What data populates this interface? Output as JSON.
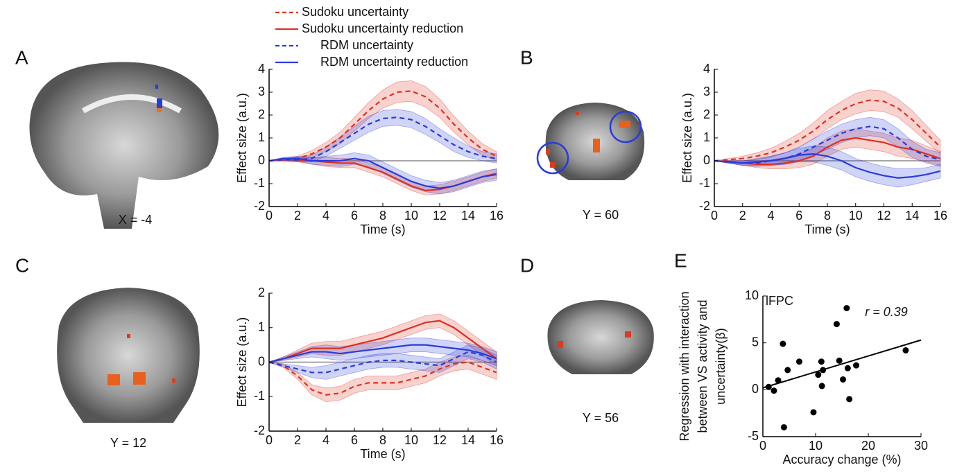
{
  "panel_labels": [
    "A",
    "B",
    "C",
    "D",
    "E"
  ],
  "brain_labels": [
    "X = -4",
    "Y = 60",
    "Y = 12",
    "Y = 56"
  ],
  "chart_data": [
    {
      "type": "line",
      "xlabel": "Time (s)",
      "ylabel": "Effect size (a.u.)",
      "x": [
        0,
        1,
        2,
        3,
        4,
        5,
        6,
        7,
        8,
        9,
        10,
        11,
        12,
        13,
        14,
        15,
        16
      ],
      "xlim": [
        0,
        16
      ],
      "xticks": [
        0,
        2,
        4,
        6,
        8,
        10,
        12,
        14,
        16
      ],
      "ylim": [
        -2,
        4
      ],
      "yticks": [
        -2,
        -1,
        0,
        1,
        2,
        3,
        4
      ],
      "reference_line": 0,
      "series": [
        {
          "name": "Sudoku uncertainty",
          "color": "#e0301e",
          "dash": true,
          "values": [
            0,
            0.05,
            0.1,
            0.3,
            0.6,
            1.0,
            1.6,
            2.2,
            2.7,
            3.0,
            3.05,
            2.8,
            2.3,
            1.6,
            1.0,
            0.5,
            0.2
          ],
          "error": [
            0,
            0.05,
            0.1,
            0.15,
            0.2,
            0.25,
            0.3,
            0.35,
            0.4,
            0.45,
            0.45,
            0.45,
            0.4,
            0.35,
            0.3,
            0.25,
            0.2
          ]
        },
        {
          "name": "Sudoku uncertainty reduction",
          "color": "#e0301e",
          "dash": false,
          "values": [
            0,
            0.05,
            0.05,
            0,
            -0.05,
            -0.1,
            -0.1,
            -0.3,
            -0.5,
            -0.8,
            -1.1,
            -1.3,
            -1.25,
            -1.1,
            -0.9,
            -0.7,
            -0.55
          ],
          "error": [
            0,
            0.05,
            0.1,
            0.15,
            0.2,
            0.2,
            0.2,
            0.2,
            0.2,
            0.2,
            0.2,
            0.2,
            0.2,
            0.2,
            0.2,
            0.2,
            0.2
          ]
        },
        {
          "name": "RDM uncertainty",
          "color": "#2a3bdc",
          "dash": true,
          "values": [
            0,
            0.05,
            0.05,
            0.1,
            0.4,
            0.8,
            1.2,
            1.6,
            1.85,
            1.9,
            1.8,
            1.5,
            1.1,
            0.7,
            0.4,
            0.2,
            0.1
          ],
          "error": [
            0,
            0.05,
            0.1,
            0.15,
            0.2,
            0.25,
            0.3,
            0.35,
            0.35,
            0.35,
            0.35,
            0.35,
            0.3,
            0.3,
            0.25,
            0.2,
            0.2
          ]
        },
        {
          "name": "RDM uncertainty reduction",
          "color": "#2a3bdc",
          "dash": false,
          "values": [
            0,
            0.1,
            0.1,
            0,
            0,
            0,
            0.1,
            0,
            -0.3,
            -0.6,
            -0.9,
            -1.1,
            -1.2,
            -1.1,
            -0.9,
            -0.7,
            -0.6
          ],
          "error": [
            0,
            0.05,
            0.1,
            0.15,
            0.2,
            0.25,
            0.25,
            0.25,
            0.25,
            0.25,
            0.25,
            0.25,
            0.25,
            0.25,
            0.25,
            0.25,
            0.25
          ]
        }
      ]
    },
    {
      "type": "line",
      "xlabel": "Time (s)",
      "ylabel": "Effect size (a.u.)",
      "x": [
        0,
        1,
        2,
        3,
        4,
        5,
        6,
        7,
        8,
        9,
        10,
        11,
        12,
        13,
        14,
        15,
        16
      ],
      "xlim": [
        0,
        16
      ],
      "xticks": [
        0,
        2,
        4,
        6,
        8,
        10,
        12,
        14,
        16
      ],
      "ylim": [
        -2,
        4
      ],
      "yticks": [
        -2,
        -1,
        0,
        1,
        2,
        3,
        4
      ],
      "reference_line": 0,
      "series": [
        {
          "color": "#e0301e",
          "dash": true,
          "values": [
            0,
            0.05,
            0.1,
            0.2,
            0.35,
            0.6,
            0.9,
            1.3,
            1.8,
            2.2,
            2.5,
            2.65,
            2.6,
            2.3,
            1.8,
            1.2,
            0.6
          ],
          "error": [
            0,
            0.05,
            0.1,
            0.15,
            0.2,
            0.25,
            0.3,
            0.35,
            0.4,
            0.4,
            0.45,
            0.45,
            0.45,
            0.4,
            0.4,
            0.35,
            0.3
          ]
        },
        {
          "color": "#e0301e",
          "dash": false,
          "values": [
            0,
            -0.05,
            -0.1,
            -0.15,
            -0.15,
            -0.1,
            0,
            0.2,
            0.6,
            0.9,
            1.0,
            0.9,
            0.8,
            0.6,
            0.5,
            0.3,
            0.1
          ],
          "error": [
            0,
            0.05,
            0.1,
            0.15,
            0.2,
            0.25,
            0.3,
            0.35,
            0.4,
            0.4,
            0.4,
            0.4,
            0.4,
            0.4,
            0.4,
            0.35,
            0.3
          ]
        },
        {
          "color": "#2a3bdc",
          "dash": true,
          "values": [
            0,
            -0.05,
            -0.1,
            -0.1,
            0,
            0.1,
            0.3,
            0.6,
            0.9,
            1.2,
            1.4,
            1.5,
            1.4,
            1.0,
            0.5,
            0.2,
            0.05
          ],
          "error": [
            0,
            0.05,
            0.1,
            0.15,
            0.2,
            0.25,
            0.3,
            0.35,
            0.4,
            0.4,
            0.4,
            0.4,
            0.4,
            0.4,
            0.35,
            0.3,
            0.3
          ]
        },
        {
          "color": "#2a3bdc",
          "dash": false,
          "values": [
            0,
            -0.05,
            -0.1,
            -0.05,
            0,
            0.1,
            0.25,
            0.3,
            0.2,
            0,
            -0.3,
            -0.5,
            -0.65,
            -0.75,
            -0.7,
            -0.6,
            -0.45
          ],
          "error": [
            0,
            0.05,
            0.1,
            0.15,
            0.2,
            0.25,
            0.3,
            0.35,
            0.4,
            0.4,
            0.4,
            0.4,
            0.4,
            0.4,
            0.35,
            0.3,
            0.3
          ]
        }
      ]
    },
    {
      "type": "line",
      "xlabel": "Time (s)",
      "ylabel": "Effect size (a.u.)",
      "x": [
        0,
        1,
        2,
        3,
        4,
        5,
        6,
        7,
        8,
        9,
        10,
        11,
        12,
        13,
        14,
        15,
        16
      ],
      "xlim": [
        0,
        16
      ],
      "xticks": [
        0,
        2,
        4,
        6,
        8,
        10,
        12,
        14,
        16
      ],
      "ylim": [
        -2,
        2
      ],
      "yticks": [
        -2,
        -1,
        0,
        1,
        2
      ],
      "reference_line": 0,
      "series": [
        {
          "color": "#e0301e",
          "dash": true,
          "values": [
            0,
            -0.1,
            -0.4,
            -0.8,
            -0.95,
            -0.9,
            -0.7,
            -0.6,
            -0.6,
            -0.6,
            -0.5,
            -0.4,
            -0.2,
            -0.05,
            0,
            -0.15,
            -0.3
          ],
          "error": [
            0,
            0.05,
            0.1,
            0.15,
            0.2,
            0.2,
            0.2,
            0.2,
            0.2,
            0.2,
            0.2,
            0.2,
            0.2,
            0.2,
            0.2,
            0.2,
            0.2
          ]
        },
        {
          "color": "#e0301e",
          "dash": false,
          "values": [
            0,
            0.1,
            0.25,
            0.4,
            0.4,
            0.4,
            0.5,
            0.6,
            0.7,
            0.85,
            1.0,
            1.15,
            1.2,
            1.0,
            0.7,
            0.4,
            0.1
          ],
          "error": [
            0,
            0.05,
            0.1,
            0.15,
            0.2,
            0.2,
            0.2,
            0.2,
            0.2,
            0.2,
            0.2,
            0.2,
            0.2,
            0.2,
            0.2,
            0.2,
            0.2
          ]
        },
        {
          "color": "#2a3bdc",
          "dash": true,
          "values": [
            0,
            -0.1,
            -0.2,
            -0.3,
            -0.3,
            -0.2,
            -0.1,
            0,
            0.05,
            0.05,
            0,
            -0.05,
            -0.1,
            0.1,
            0.3,
            0.2,
            0
          ],
          "error": [
            0,
            0.05,
            0.1,
            0.15,
            0.2,
            0.2,
            0.2,
            0.2,
            0.2,
            0.2,
            0.2,
            0.2,
            0.2,
            0.2,
            0.2,
            0.2,
            0.2
          ]
        },
        {
          "color": "#2a3bdc",
          "dash": false,
          "values": [
            0,
            0.1,
            0.2,
            0.3,
            0.3,
            0.25,
            0.3,
            0.35,
            0.4,
            0.45,
            0.5,
            0.5,
            0.45,
            0.4,
            0.35,
            0.25,
            0.1
          ],
          "error": [
            0,
            0.05,
            0.1,
            0.15,
            0.2,
            0.2,
            0.2,
            0.2,
            0.2,
            0.2,
            0.2,
            0.2,
            0.2,
            0.2,
            0.2,
            0.2,
            0.2
          ]
        }
      ]
    },
    {
      "type": "scatter",
      "xlabel": "Accuracy change (%)",
      "ylabel": [
        "Regression with interaction",
        "between VS activity and",
        "uncertainty(β)"
      ],
      "annotations": [
        "lFPC",
        "r = 0.39"
      ],
      "xlim": [
        0,
        30
      ],
      "xticks": [
        0,
        10,
        20,
        30
      ],
      "ylim": [
        -5,
        10
      ],
      "yticks": [
        -5,
        0,
        5,
        10
      ],
      "color": "#000000",
      "x": [
        1.1,
        2.1,
        2.9,
        3.8,
        4.0,
        4.7,
        6.9,
        9.6,
        10.5,
        11.1,
        11.2,
        11.4,
        14.0,
        14.5,
        15.2,
        15.9,
        16.1,
        16.4,
        17.7,
        27.1
      ],
      "values": [
        0.3,
        -0.1,
        1.0,
        4.9,
        -4.0,
        2.1,
        3.0,
        -2.4,
        1.6,
        3.0,
        0.4,
        2.1,
        7.0,
        3.1,
        1.1,
        8.7,
        2.3,
        -1.0,
        2.6,
        4.2
      ],
      "fit": {
        "x": [
          0,
          30
        ],
        "values": [
          0.2,
          5.3
        ]
      }
    }
  ]
}
